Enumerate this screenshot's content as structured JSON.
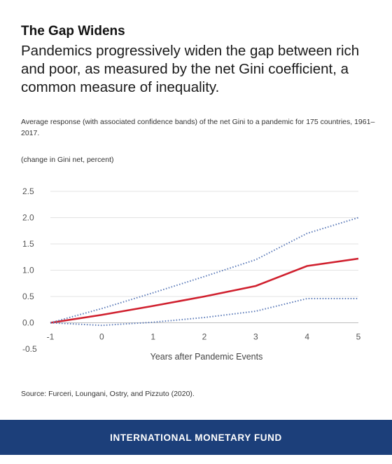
{
  "header": {
    "title": "The Gap Widens",
    "headline": "Pandemics progressively widen the gap between rich and poor, as measured by the net Gini coefficient, a common measure of inequality.",
    "subtitle": "Average response (with associated confidence bands) of the net Gini to a pandemic for 175 countries, 1961–2017.",
    "unit_label": "(change in Gini net, percent)"
  },
  "chart_data": {
    "type": "line",
    "x": [
      -1,
      0,
      1,
      2,
      3,
      4,
      5
    ],
    "series": [
      {
        "values": [
          0.0,
          0.15,
          0.32,
          0.5,
          0.7,
          1.08,
          1.22
        ],
        "style": "solid",
        "color": "#d0202e"
      },
      {
        "values": [
          0.0,
          0.27,
          0.57,
          0.88,
          1.2,
          1.7,
          2.0
        ],
        "style": "dotted",
        "color": "#5b7ab8"
      },
      {
        "values": [
          0.0,
          -0.05,
          0.01,
          0.1,
          0.22,
          0.46,
          0.46
        ],
        "style": "dotted",
        "color": "#5b7ab8"
      }
    ],
    "xlabel": "Years after Pandemic Events",
    "ylabel": "(change in Gini net, percent)",
    "x_ticks": [
      "-1",
      "0",
      "1",
      "2",
      "3",
      "4",
      "5"
    ],
    "y_ticks": [
      "2.5",
      "2.0",
      "1.5",
      "1.0",
      "0.5",
      "0.0",
      "-0.5"
    ],
    "ylim": [
      -0.5,
      2.5
    ],
    "xlim": [
      -1,
      5
    ],
    "grid": true
  },
  "footer": {
    "source": "Source: Furceri, Loungani, Ostry, and Pizzuto (2020).",
    "org": "INTERNATIONAL MONETARY FUND"
  },
  "colors": {
    "footer_bg": "#1c3f7a",
    "mean_line": "#d0202e",
    "band_line": "#5b7ab8",
    "grid": "#e3e3e3"
  }
}
